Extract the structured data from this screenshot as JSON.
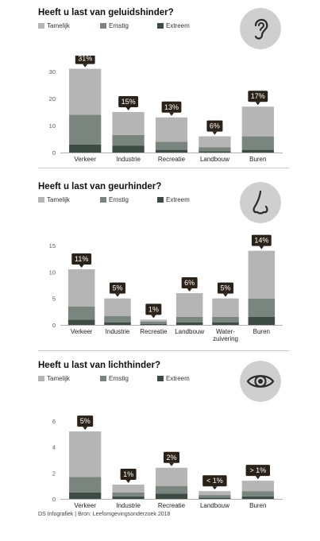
{
  "colors": {
    "tamelijk": "#b5b5b5",
    "ernstig": "#7a8580",
    "extreem": "#3d4b45",
    "callout": "#2a2118",
    "icon_bg": "#cfcfcf"
  },
  "legend": {
    "tamelijk": "Tamelijk",
    "ernstig": "Ernstig",
    "extreem": "Extreem"
  },
  "footer": "DS Infografiek | Bron: Leefomgevingsonderzoek 2018",
  "chart_data": [
    {
      "type": "bar",
      "stacked": true,
      "title": "Heeft u last van geluidshinder?",
      "icon": "ear-icon",
      "categories": [
        "Verkeer",
        "Industrie",
        "Recreatie",
        "Landbouw",
        "Buren"
      ],
      "totals_labels": [
        "31%",
        "15%",
        "13%",
        "6%",
        "17%"
      ],
      "series": [
        {
          "name": "Extreem",
          "values": [
            3,
            2.5,
            1,
            0.5,
            1
          ]
        },
        {
          "name": "Ernstig",
          "values": [
            11,
            4,
            3,
            1.5,
            5
          ]
        },
        {
          "name": "Tamelijk",
          "values": [
            17,
            8.5,
            9,
            4,
            11
          ]
        }
      ],
      "yticks": [
        0,
        10,
        20,
        30
      ],
      "ylim": [
        0,
        30
      ],
      "legend_position": "top-left"
    },
    {
      "type": "bar",
      "stacked": true,
      "title": "Heeft u last van geurhinder?",
      "icon": "nose-icon",
      "categories": [
        "Verkeer",
        "Industrie",
        "Recreatie",
        "Landbouw",
        "Water-\nzuivering",
        "Buren"
      ],
      "totals_labels": [
        "11%",
        "5%",
        "1%",
        "6%",
        "5%",
        "14%"
      ],
      "series": [
        {
          "name": "Extreem",
          "values": [
            1,
            0.5,
            0.2,
            0.5,
            0.5,
            1.5
          ]
        },
        {
          "name": "Ernstig",
          "values": [
            2.5,
            1.2,
            0.4,
            1,
            1,
            3.5
          ]
        },
        {
          "name": "Tamelijk",
          "values": [
            7,
            3.3,
            0.4,
            4.5,
            3.5,
            9
          ]
        }
      ],
      "yticks": [
        0,
        5,
        10,
        15
      ],
      "ylim": [
        0,
        15
      ],
      "legend_position": "top-left"
    },
    {
      "type": "bar",
      "stacked": true,
      "title": "Heeft u last van lichthinder?",
      "icon": "eye-icon",
      "categories": [
        "Verkeer",
        "Industrie",
        "Recreatie",
        "Landbouw",
        "Buren"
      ],
      "totals_labels": [
        "5%",
        "1%",
        "2%",
        "< 1%",
        "> 1%"
      ],
      "series": [
        {
          "name": "Extreem",
          "values": [
            0.5,
            0.2,
            0.4,
            0.1,
            0.2
          ]
        },
        {
          "name": "Ernstig",
          "values": [
            1.2,
            0.3,
            0.6,
            0.2,
            0.4
          ]
        },
        {
          "name": "Tamelijk",
          "values": [
            3.5,
            0.6,
            1.4,
            0.3,
            0.8
          ]
        }
      ],
      "yticks": [
        0,
        2,
        4,
        6
      ],
      "ylim": [
        0,
        6
      ],
      "legend_position": "top-left"
    }
  ]
}
